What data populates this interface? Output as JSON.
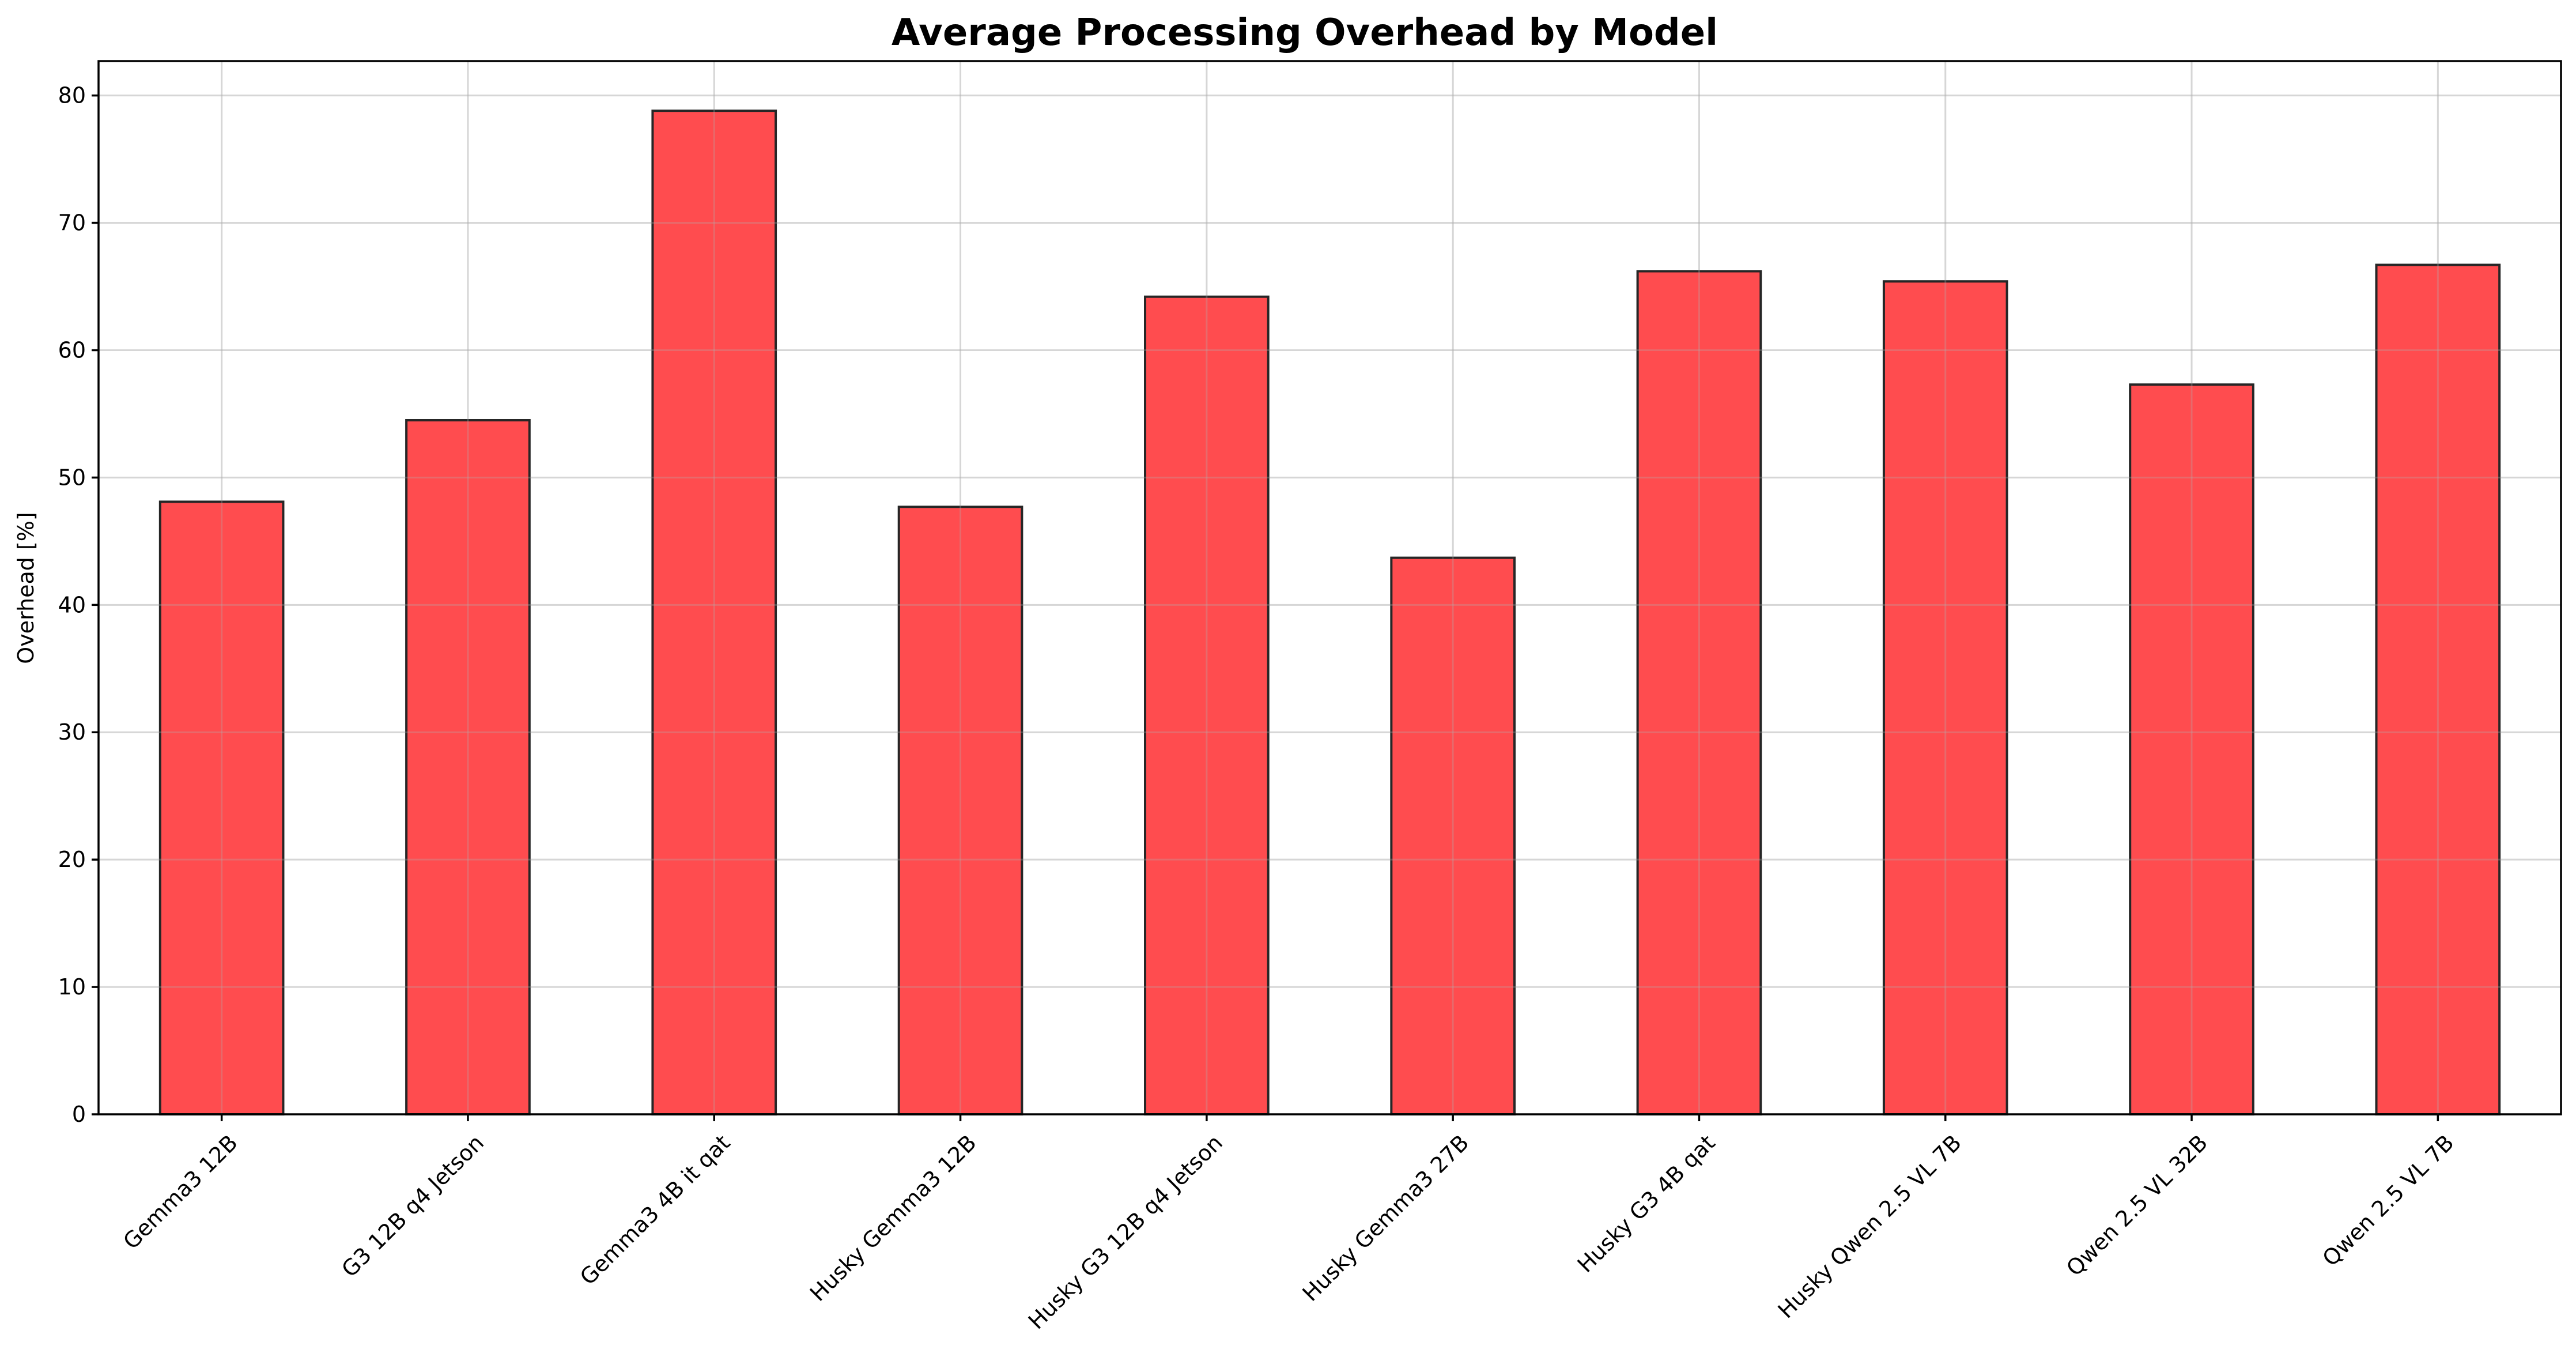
{
  "chart_data": {
    "type": "bar",
    "title": "Average Processing Overhead by Model",
    "xlabel": "",
    "ylabel": "Overhead [%]",
    "categories": [
      "Gemma3 12B",
      "G3 12B q4 Jetson",
      "Gemma3 4B it qat",
      "Husky Gemma3 12B",
      "Husky G3 12B q4 Jetson",
      "Husky Gemma3 27B",
      "Husky G3 4B qat",
      "Husky Qwen 2.5 VL 7B",
      "Qwen 2.5 VL 32B",
      "Qwen 2.5 VL 7B"
    ],
    "values": [
      48.1,
      54.5,
      78.8,
      47.7,
      64.2,
      43.7,
      66.2,
      65.4,
      57.3,
      66.7
    ],
    "ylim": [
      0,
      82.7
    ],
    "yticks": [
      0,
      10,
      20,
      30,
      40,
      50,
      60,
      70,
      80
    ],
    "grid": true,
    "bar_color": "#ff4c4f",
    "edge_color": "#262626"
  }
}
